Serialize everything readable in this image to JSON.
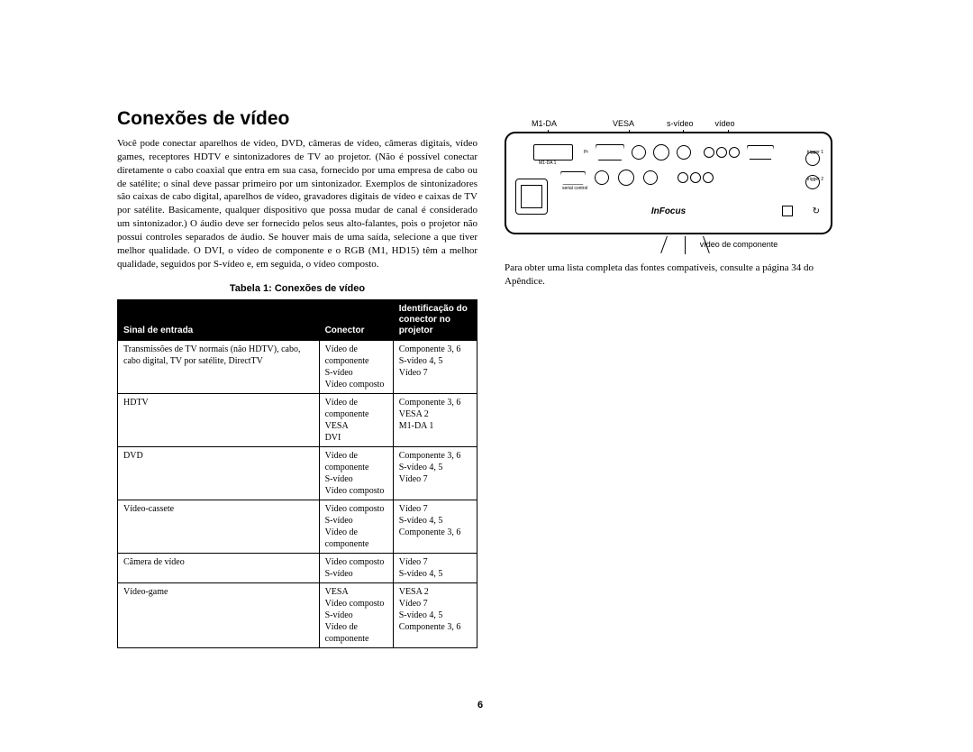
{
  "title": "Conexões de vídeo",
  "intro": "Você pode conectar aparelhos de vídeo, DVD, câmeras de vídeo, câmeras digitais, vídeo games, receptores HDTV e sintonizadores de TV ao projetor. (Não é possível conectar diretamente o cabo coaxial que entra em sua casa, fornecido por uma empresa de cabo ou de satélite; o sinal deve passar primeiro por um sintonizador. Exemplos de sintonizadores são caixas de cabo digital, aparelhos de vídeo, gravadores digitais de vídeo e caixas de TV por satélite. Basicamente, qualquer dispositivo que possa mudar de canal é considerado um sintonizador.) O áudio deve ser fornecido pelos seus alto-falantes, pois o projetor não possui controles separados de áudio. Se houver mais de uma saída, selecione a que tiver melhor qualidade. O DVI, o vídeo de componente e o RGB (M1, HD15) têm a melhor qualidade, seguidos por S-vídeo e, em seguida, o vídeo composto.",
  "table_title": "Tabela 1: Conexões de vídeo",
  "table": {
    "headers": [
      "Sinal de entrada",
      "Conector",
      "Identificação do conector no projetor"
    ],
    "rows": [
      {
        "signal": "Transmissões de TV normais (não HDTV), cabo, cabo digital, TV por satélite, DirectTV",
        "connector": "Vídeo de componente\nS-vídeo\nVídeo composto",
        "id": "Componente 3, 6\nS-vídeo 4, 5\nVídeo 7"
      },
      {
        "signal": "HDTV",
        "connector": "Vídeo de componente\nVESA\nDVI",
        "id": "Componente 3, 6\nVESA 2\nM1-DA 1"
      },
      {
        "signal": "DVD",
        "connector": "Vídeo de componente\nS-vídeo\nVídeo composto",
        "id": "Componente 3, 6\nS-vídeo 4, 5\nVídeo 7"
      },
      {
        "signal": "Vídeo-cassete",
        "connector": "Vídeo composto\nS-vídeo\nVídeo de componente",
        "id": "Vídeo 7\nS-vídeo 4, 5\nComponente 3, 6"
      },
      {
        "signal": "Câmera de vídeo",
        "connector": "Vídeo composto\nS-vídeo",
        "id": "Vídeo 7\nS-vídeo 4, 5"
      },
      {
        "signal": "Vídeo-game",
        "connector": "VESA\nVídeo composto\nS-vídeo\nVídeo de componente",
        "id": "VESA 2\nVídeo 7\nS-vídeo 4, 5\nComponente 3, 6"
      }
    ]
  },
  "diagram": {
    "top_labels": {
      "m1da": "M1-DA",
      "vesa": "VESA",
      "svideo": "s-vídeo",
      "video": "vídeo"
    },
    "brand": "InFocus",
    "tiny_labels": {
      "m1da1": "M1-DA 1",
      "vesa2": "vesa 2",
      "hd15": "HD 15",
      "serial": "serial control",
      "svideo": "s-video",
      "video": "video",
      "trigger1": "trigger 1",
      "trigger2": "trigger 2"
    },
    "bottom_label": "vídeo de componente"
  },
  "appendix_text": "Para obter uma lista completa das fontes compatíveis, consulte a página 34 do Apêndice.",
  "page_number": "6"
}
